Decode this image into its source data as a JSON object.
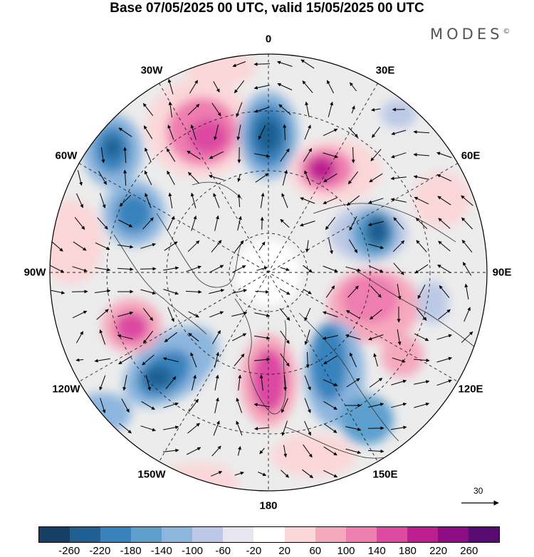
{
  "title": "Base 07/05/2025 00 UTC, valid 15/05/2025 00 UTC",
  "brand": "MODES",
  "brand_mark": "©",
  "longitude_labels": [
    {
      "text": "180",
      "lon": 180
    },
    {
      "text": "150E",
      "lon": 150
    },
    {
      "text": "120E",
      "lon": 120
    },
    {
      "text": "90E",
      "lon": 90
    },
    {
      "text": "60E",
      "lon": 60
    },
    {
      "text": "30E",
      "lon": 30
    },
    {
      "text": "0",
      "lon": 0
    },
    {
      "text": "30W",
      "lon": -30
    },
    {
      "text": "60W",
      "lon": -60
    },
    {
      "text": "90W",
      "lon": -90
    },
    {
      "text": "120W",
      "lon": -120
    },
    {
      "text": "150W",
      "lon": -150
    }
  ],
  "reference_vector_label": "30",
  "colorbar": {
    "colors": [
      "#173e63",
      "#1f5f91",
      "#3983bd",
      "#5da0cf",
      "#8db6de",
      "#bcc9e6",
      "#e6e6f1",
      "#ffffff",
      "#fbd7d9",
      "#f6a9bd",
      "#ee7db0",
      "#dc4aa2",
      "#bd1f91",
      "#8e0c84",
      "#5a0b73"
    ],
    "tick_labels": [
      "-260",
      "-220",
      "-180",
      "-140",
      "-100",
      "-60",
      "-20",
      "20",
      "60",
      "100",
      "140",
      "180",
      "220",
      "260"
    ]
  },
  "anomaly_centers": [
    {
      "name": "blob-pink-alaska-pacific",
      "sign": "positive",
      "level": 180
    },
    {
      "name": "blob-blue-east-siberian",
      "sign": "negative",
      "level": -220
    },
    {
      "name": "blob-blue-gulf-of-alaska",
      "sign": "negative",
      "level": -180
    },
    {
      "name": "blob-blue-western-canada",
      "sign": "negative",
      "level": -180
    },
    {
      "name": "blob-pink-laptev-yakutia",
      "sign": "positive",
      "level": 220
    },
    {
      "name": "blob-blue-central-siberia",
      "sign": "negative",
      "level": -180
    },
    {
      "name": "blob-pink-kazakhstan",
      "sign": "positive",
      "level": 140
    },
    {
      "name": "blob-blue-western-russia",
      "sign": "negative",
      "level": -180
    },
    {
      "name": "blob-pink-greenland-norway",
      "sign": "positive",
      "level": 180
    },
    {
      "name": "blob-blue-north-atlantic",
      "sign": "negative",
      "level": -180
    },
    {
      "name": "blob-pink-hudson-labrador",
      "sign": "positive",
      "level": 180
    },
    {
      "name": "blob-blue-europe",
      "sign": "negative",
      "level": -140
    },
    {
      "name": "blob-blue-mongolia",
      "sign": "negative",
      "level": -100
    },
    {
      "name": "blob-pink-mediterranean",
      "sign": "positive",
      "level": 60
    },
    {
      "name": "blob-pink-eastern-pacific",
      "sign": "positive",
      "level": 60
    },
    {
      "name": "blob-pink-china",
      "sign": "positive",
      "level": 60
    }
  ]
}
